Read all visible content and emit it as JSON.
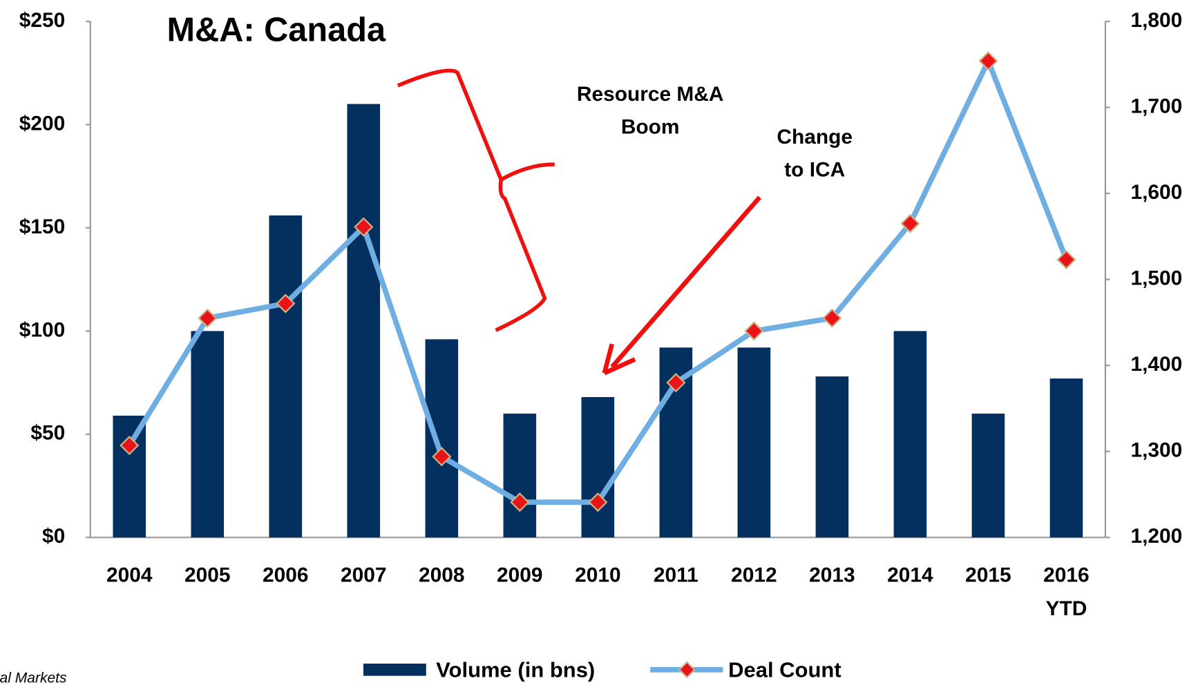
{
  "chart_data": {
    "type": "bar_line",
    "title": "M&A: Canada",
    "categories": [
      "2004",
      "2005",
      "2006",
      "2007",
      "2008",
      "2009",
      "2010",
      "2011",
      "2012",
      "2013",
      "2014",
      "2015",
      "2016 YTD"
    ],
    "series": [
      {
        "name": "Volume (in bns)",
        "color": "#04305f",
        "type": "bar",
        "values": [
          59,
          100,
          156,
          210,
          96,
          60,
          68,
          92,
          92,
          78,
          100,
          60,
          77
        ]
      },
      {
        "name": "Deal Count",
        "color": "#6faee3",
        "type": "line",
        "axis": "y2",
        "marker_color": "#e8141a",
        "values": [
          1307,
          1455,
          1472,
          1561,
          1294,
          1241,
          1241,
          1380,
          1440,
          1455,
          1565,
          1754,
          1523
        ]
      }
    ],
    "ylim": [
      0,
      250
    ],
    "yticks": [
      {
        "value": 0,
        "label": "$0"
      },
      {
        "value": 50,
        "label": "$50"
      },
      {
        "value": 100,
        "label": "$100"
      },
      {
        "value": 150,
        "label": "$150"
      },
      {
        "value": 200,
        "label": "$200"
      },
      {
        "value": 250,
        "label": "$250"
      }
    ],
    "y2lim": [
      1200,
      1800
    ],
    "y2ticks": [
      {
        "value": 1200,
        "label": "1,200"
      },
      {
        "value": 1300,
        "label": "1,300"
      },
      {
        "value": 1400,
        "label": "1,400"
      },
      {
        "value": 1500,
        "label": "1,500"
      },
      {
        "value": 1600,
        "label": "1,600"
      },
      {
        "value": 1700,
        "label": "1,700"
      },
      {
        "value": 1800,
        "label": "1,800"
      }
    ],
    "annotations": [
      "Resource M&A Boom",
      "Change to ICA"
    ],
    "source": "ital Markets",
    "grid": false
  }
}
